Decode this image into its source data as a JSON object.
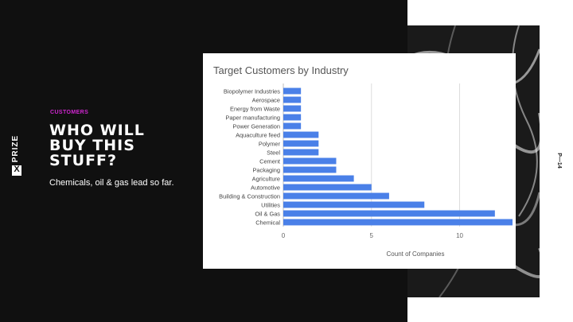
{
  "slide": {
    "eyebrow": "CUSTOMERS",
    "headline_lines": [
      "WHO WILL",
      "BUY THIS",
      "STUFF?"
    ],
    "subtitle": "Chemicals, oil & gas lead so far.",
    "page_number": "P—14",
    "brand": {
      "mark": "X",
      "word": "PRIZE"
    },
    "colors": {
      "accent": "#d126d1",
      "dark": "#101010",
      "bar": "#4a80e8"
    }
  },
  "chart_data": {
    "type": "bar",
    "orientation": "horizontal",
    "title": "Target Customers by Industry",
    "xlabel": "Count of Companies",
    "ylabel": "",
    "xlim": [
      0,
      13
    ],
    "xticks": [
      0,
      5,
      10
    ],
    "grid": true,
    "categories": [
      "Biopolymer Industries",
      "Aerospace",
      "Energy from Waste",
      "Paper manufacturing",
      "Power Generation",
      "Aquaculture feed",
      "Polymer",
      "Steel",
      "Cement",
      "Packaging",
      "Agriculture",
      "Automotive",
      "Building & Construction",
      "Utilities",
      "Oil & Gas",
      "Chemical"
    ],
    "values": [
      1,
      1,
      1,
      1,
      1,
      2,
      2,
      2,
      3,
      3,
      4,
      5,
      6,
      8,
      12,
      13
    ]
  }
}
